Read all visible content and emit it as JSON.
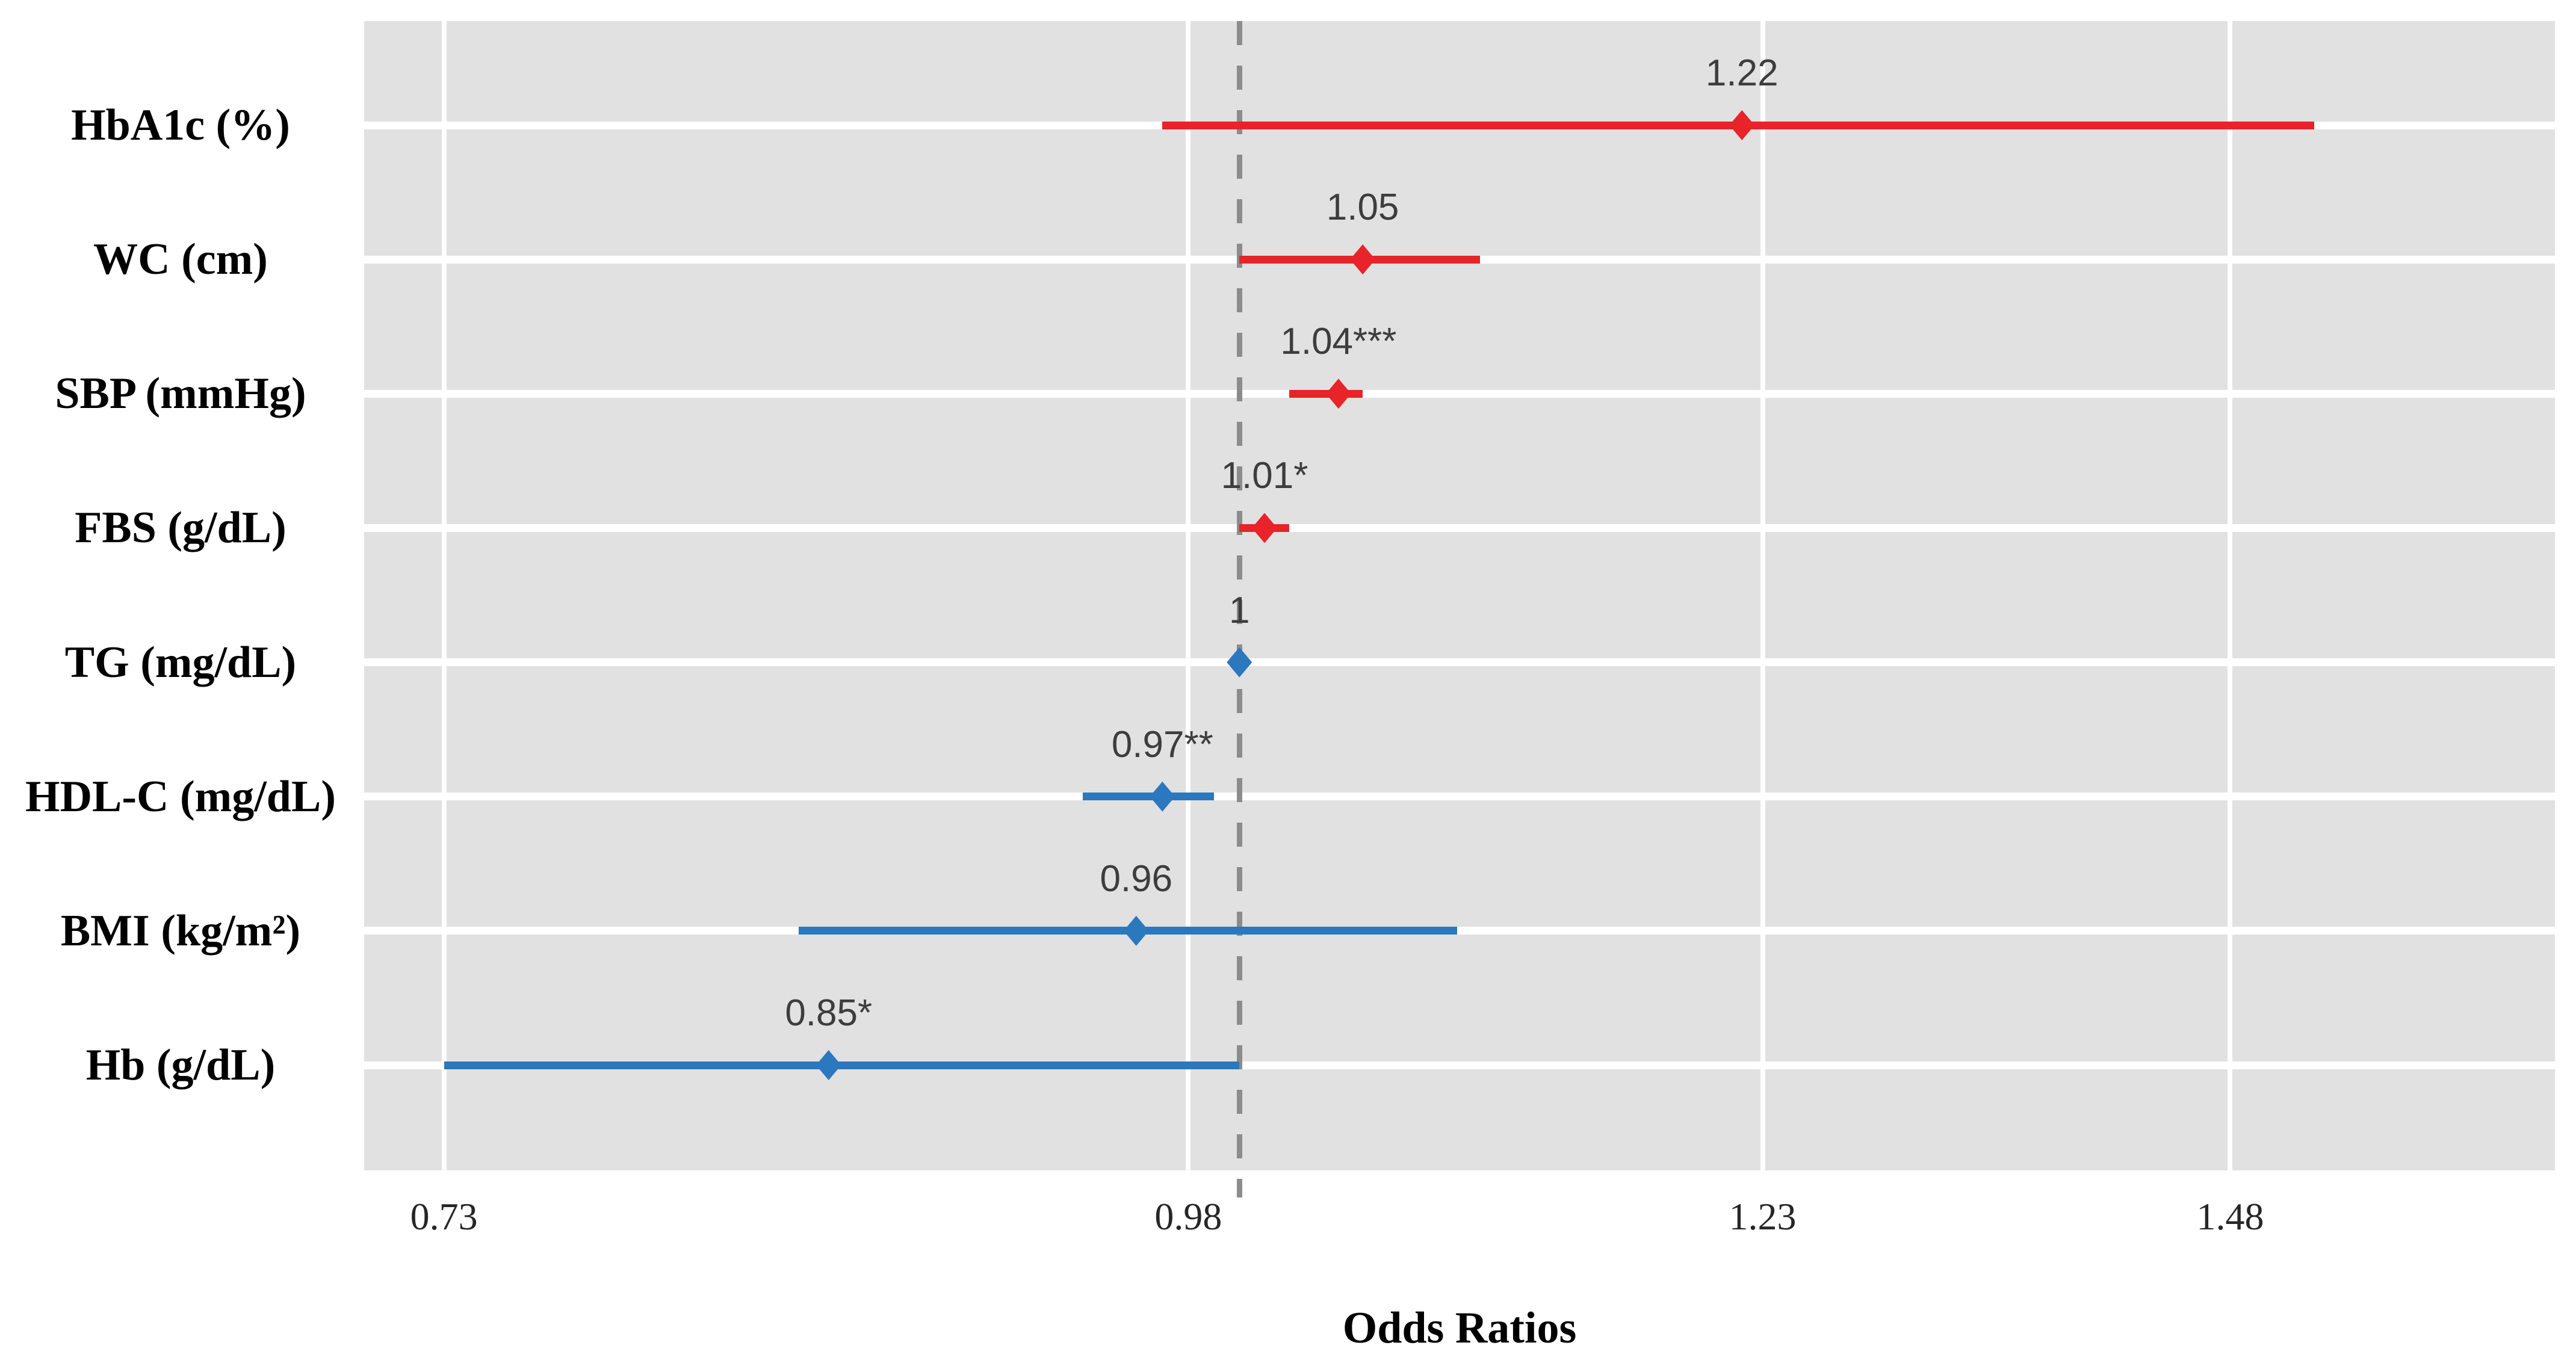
{
  "figure": {
    "xlabel": "Odds Ratios"
  },
  "chart_data": {
    "type": "scatter",
    "variant": "horizontal-forest-plot",
    "title": "",
    "xlabel": "Odds Ratios",
    "x_scale": "log",
    "xlim": [
      0.7073,
      1.6829
    ],
    "x_ticks": [
      0.73,
      0.98,
      1.23,
      1.48
    ],
    "x_tick_labels": [
      "0.73",
      "0.98",
      "1.23",
      "1.48"
    ],
    "reference_line": 1.0,
    "legend": "none",
    "grid": {
      "panel_bg": "#e1e1e1",
      "gridline_color": "#ffffff",
      "reference_line_color": "#8c8c8c"
    },
    "colors": {
      "increased_odds": "#e82329",
      "decreased_odds": "#2b78be"
    },
    "categories": [
      "HbA1c (%)",
      "WC (cm)",
      "SBP (mmHg)",
      "FBS (g/dL)",
      "TG (mg/dL)",
      "HDL-C (mg/dL)",
      "BMI (kg/m²)",
      "Hb (g/dL)"
    ],
    "points": [
      {
        "category": "HbA1c (%)",
        "or": 1.22,
        "ci_low": 0.97,
        "ci_high": 1.53,
        "label": "1.22",
        "group": "increased_odds"
      },
      {
        "category": "WC (cm)",
        "or": 1.05,
        "ci_low": 1.0,
        "ci_high": 1.1,
        "label": "1.05",
        "group": "increased_odds"
      },
      {
        "category": "SBP (mmHg)",
        "or": 1.04,
        "ci_low": 1.02,
        "ci_high": 1.05,
        "label": "1.04***",
        "group": "increased_odds"
      },
      {
        "category": "FBS (g/dL)",
        "or": 1.01,
        "ci_low": 1.0,
        "ci_high": 1.02,
        "label": "1.01*",
        "group": "increased_odds"
      },
      {
        "category": "TG (mg/dL)",
        "or": 1.0,
        "ci_low": 1.0,
        "ci_high": 1.0,
        "label": "1",
        "group": "decreased_odds"
      },
      {
        "category": "HDL-C (mg/dL)",
        "or": 0.97,
        "ci_low": 0.94,
        "ci_high": 0.99,
        "label": "0.97**",
        "group": "decreased_odds"
      },
      {
        "category": "BMI (kg/m²)",
        "or": 0.96,
        "ci_low": 0.84,
        "ci_high": 1.09,
        "label": "0.96",
        "group": "decreased_odds"
      },
      {
        "category": "Hb (g/dL)",
        "or": 0.85,
        "ci_low": 0.73,
        "ci_high": 1.0,
        "label": "0.85*",
        "group": "decreased_odds"
      }
    ]
  }
}
